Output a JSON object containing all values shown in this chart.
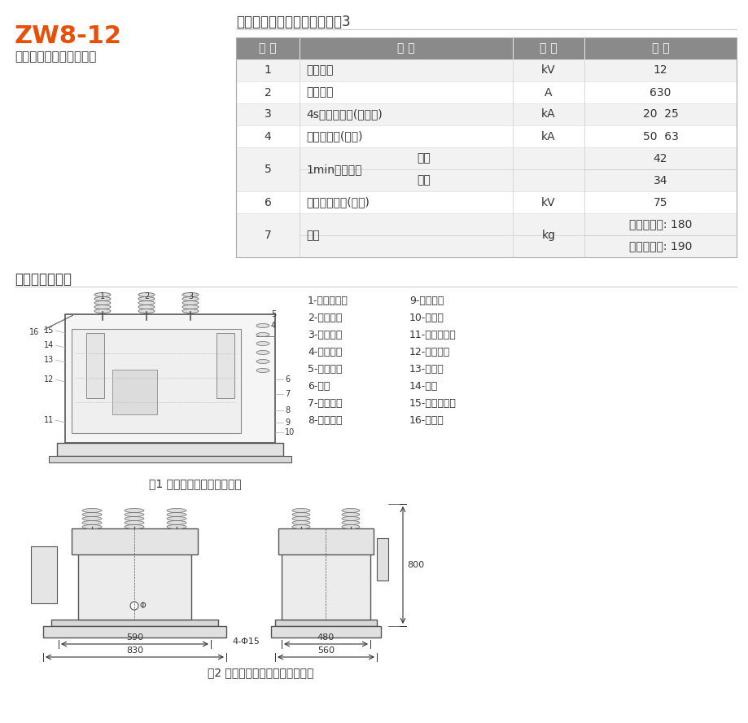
{
  "title1": "ZW8-12",
  "title2": "户外高压交流真空断路器",
  "section1_title": "组合断路器主要技术参数见表3",
  "section2_title": "外形及安装尺寸",
  "fig1_caption": "图1 断路器本体内部结构示意",
  "fig2_caption": "图2 断路器外形尺寸及安装尺寸图",
  "title1_color": "#E8500A",
  "header_bg": "#8A8A8A",
  "header_text": "#FFFFFF",
  "row_odd_bg": "#F2F2F2",
  "row_even_bg": "#FFFFFF",
  "table_headers": [
    "序 号",
    "名 称",
    "单 位",
    "数 据"
  ],
  "legend_col1": [
    "1-分闸缓冲器",
    "2-三相转轴",
    "3-分闸拉杆",
    "4-分闸弹簧",
    "5-绝缘拉杆",
    "6-拐臂",
    "7-触头弹簧",
    "8-触头推杆"
  ],
  "legend_col2": [
    "9-动端支架",
    "10-软联结",
    "11-真空灭弧室",
    "12-静端支架",
    "13-绝缘罩",
    "14-箱体",
    "15-电流互感器",
    "16-导电杆"
  ]
}
